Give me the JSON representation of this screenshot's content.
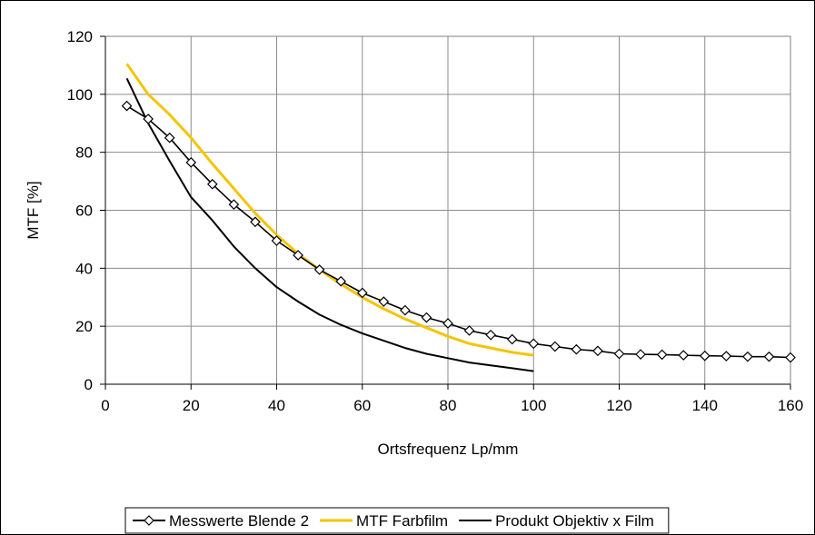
{
  "chart_data": {
    "type": "line",
    "xlabel": "Ortsfrequenz  Lp/mm",
    "ylabel": "MTF  [%]",
    "xlim": [
      0,
      160
    ],
    "ylim": [
      0,
      120
    ],
    "xticks": [
      "0",
      "20",
      "40",
      "60",
      "80",
      "100",
      "120",
      "140",
      "160"
    ],
    "yticks": [
      "0",
      "20",
      "40",
      "60",
      "80",
      "100",
      "120"
    ],
    "grid": true,
    "legend_position": "bottom",
    "series": [
      {
        "name": "Messwerte Blende 2",
        "color": "#000000",
        "marker": "diamond-open",
        "x": [
          5,
          10,
          15,
          20,
          25,
          30,
          35,
          40,
          45,
          50,
          55,
          60,
          65,
          70,
          75,
          80,
          85,
          90,
          95,
          100,
          105,
          110,
          115,
          120,
          125,
          130,
          135,
          140,
          145,
          150,
          155,
          160
        ],
        "y": [
          96,
          91.5,
          85,
          76.5,
          69,
          62,
          56,
          49.5,
          44.5,
          39.5,
          35.5,
          31.5,
          28.5,
          25.5,
          23,
          21,
          18.5,
          17,
          15.5,
          14,
          13,
          12,
          11.5,
          10.5,
          10.3,
          10.2,
          10,
          9.8,
          9.7,
          9.5,
          9.5,
          9.2
        ]
      },
      {
        "name": "MTF Farbfilm",
        "color": "#f5c400",
        "marker": "none",
        "x": [
          5,
          10,
          15,
          20,
          25,
          30,
          35,
          40,
          45,
          50,
          55,
          60,
          65,
          70,
          75,
          80,
          85,
          90,
          95,
          100
        ],
        "y": [
          110.5,
          100,
          93,
          85,
          76,
          67.5,
          59,
          51.5,
          45,
          39.5,
          34.5,
          30,
          26,
          22.5,
          19.5,
          16.5,
          14,
          12.5,
          11,
          10
        ]
      },
      {
        "name": "Produkt Objektiv x Film",
        "color": "#000000",
        "marker": "none",
        "x": [
          5,
          10,
          15,
          20,
          25,
          30,
          35,
          40,
          45,
          50,
          55,
          60,
          65,
          70,
          75,
          80,
          85,
          90,
          95,
          100
        ],
        "y": [
          105.5,
          90,
          77,
          64.5,
          56.5,
          47.5,
          40,
          33.5,
          28.5,
          24,
          20.5,
          17.5,
          15,
          12.5,
          10.5,
          9,
          7.5,
          6.5,
          5.5,
          4.5
        ]
      }
    ]
  }
}
